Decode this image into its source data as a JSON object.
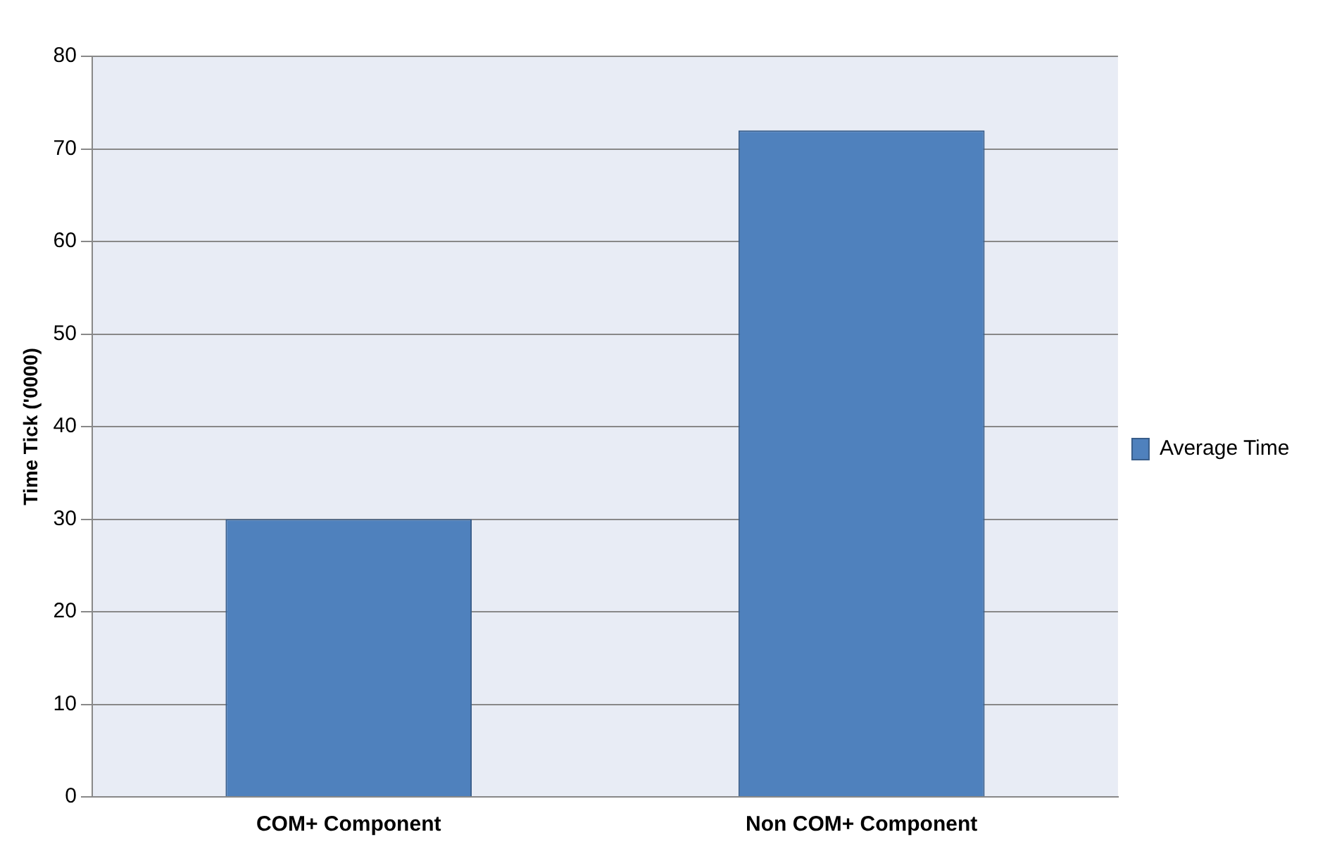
{
  "chart_data": {
    "type": "bar",
    "ylabel": "Time Tick ('0000)",
    "categories": [
      "COM+ Component",
      "Non COM+ Component"
    ],
    "series": [
      {
        "name": "Average Time",
        "color": "#4f81bd",
        "values": [
          30,
          72
        ]
      }
    ],
    "ylim": [
      0,
      80
    ],
    "yticks": [
      0,
      10,
      20,
      30,
      40,
      50,
      60,
      70,
      80
    ],
    "grid": "y",
    "legend": "right"
  }
}
